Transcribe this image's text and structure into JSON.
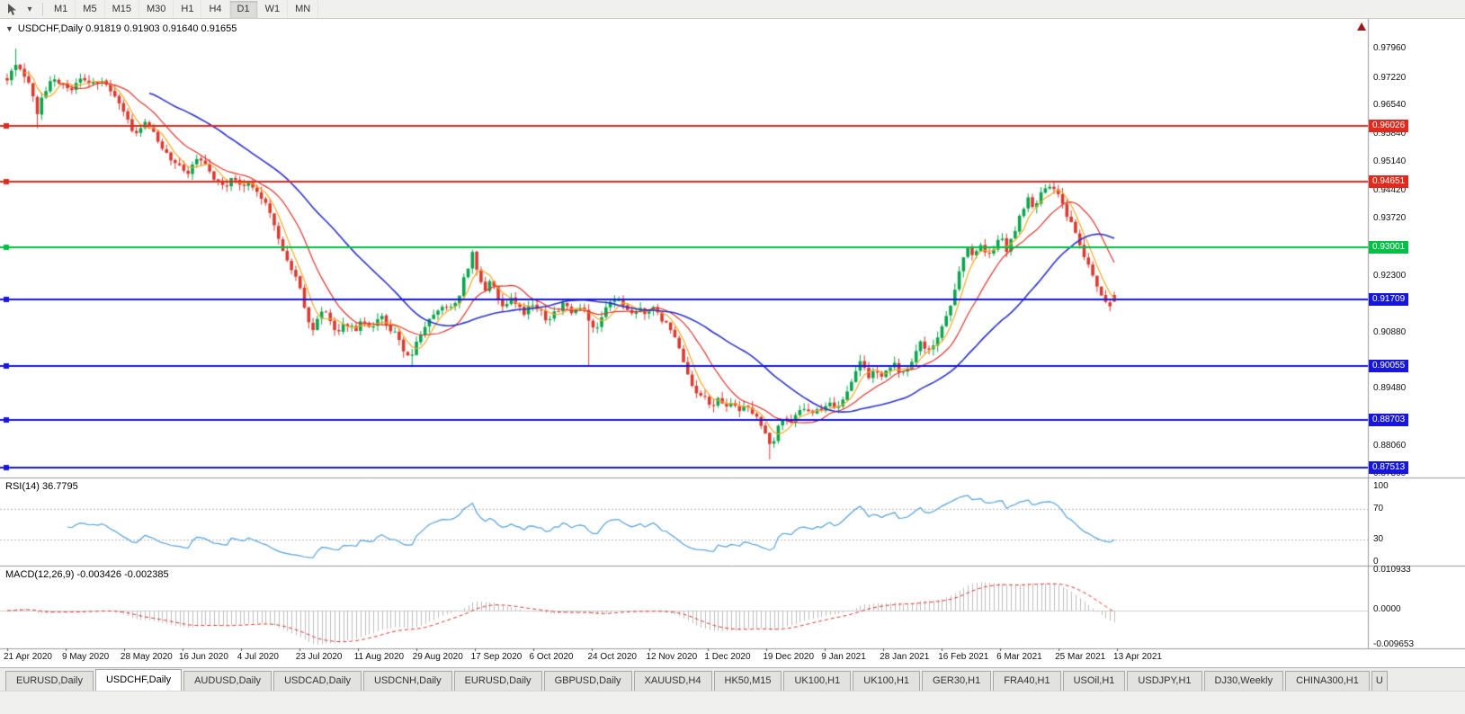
{
  "toolbar": {
    "timeframes": [
      {
        "label": "M1",
        "active": false
      },
      {
        "label": "M5",
        "active": false
      },
      {
        "label": "M15",
        "active": false
      },
      {
        "label": "M30",
        "active": false
      },
      {
        "label": "H1",
        "active": false
      },
      {
        "label": "H4",
        "active": false
      },
      {
        "label": "D1",
        "active": true
      },
      {
        "label": "W1",
        "active": false
      },
      {
        "label": "MN",
        "active": false
      }
    ]
  },
  "chart": {
    "title_text": "USDCHF,Daily 0.91819 0.91903 0.91640 0.91655",
    "collapse_glyph": "▼"
  },
  "indicators": {
    "rsi": {
      "label": "RSI(14) 36.7795",
      "axis_labels": [
        "100",
        "70",
        "30",
        "0"
      ]
    },
    "macd": {
      "label": "MACD(12,26,9) -0.003426 -0.002385",
      "axis_labels": [
        "0.010933",
        "0.0000",
        "-0.009653"
      ]
    }
  },
  "tabs": [
    {
      "label": "EURUSD,Daily",
      "active": false
    },
    {
      "label": "USDCHF,Daily",
      "active": true
    },
    {
      "label": "AUDUSD,Daily",
      "active": false
    },
    {
      "label": "USDCAD,Daily",
      "active": false
    },
    {
      "label": "USDCNH,Daily",
      "active": false
    },
    {
      "label": "EURUSD,Daily",
      "active": false
    },
    {
      "label": "GBPUSD,Daily",
      "active": false
    },
    {
      "label": "XAUUSD,H4",
      "active": false
    },
    {
      "label": "HK50,M15",
      "active": false
    },
    {
      "label": "UK100,H1",
      "active": false
    },
    {
      "label": "UK100,H1",
      "active": false
    },
    {
      "label": "GER30,H1",
      "active": false
    },
    {
      "label": "FRA40,H1",
      "active": false
    },
    {
      "label": "USOil,H1",
      "active": false
    },
    {
      "label": "USDJPY,H1",
      "active": false
    },
    {
      "label": "DJ30,Weekly",
      "active": false
    },
    {
      "label": "CHINA300,H1",
      "active": false
    },
    {
      "label": "U",
      "active": false,
      "clipped": true
    }
  ],
  "chart_data": {
    "type": "candlestick",
    "symbol": "USDCHF",
    "period": "Daily",
    "ohlc_display": {
      "open": 0.91819,
      "high": 0.91903,
      "low": 0.9164,
      "close": 0.91655
    },
    "colors": {
      "up": "#0aa64c",
      "down": "#dc3a30",
      "background": "#ffffff",
      "separator": "#9a9a9a"
    },
    "y_axis_labels": [
      "0.97960",
      "0.97220",
      "0.96540",
      "0.95840",
      "0.95140",
      "0.94420",
      "0.93720",
      "0.92300",
      "0.90880",
      "0.89480",
      "0.88060",
      "0.87360"
    ],
    "x_labels": [
      "21 Apr 2020",
      "9 May 2020",
      "28 May 2020",
      "16 Jun 2020",
      "4 Jul 2020",
      "23 Jul 2020",
      "11 Aug 2020",
      "29 Aug 2020",
      "17 Sep 2020",
      "6 Oct 2020",
      "24 Oct 2020",
      "12 Nov 2020",
      "1 Dec 2020",
      "19 Dec 2020",
      "9 Jan 2021",
      "28 Jan 2021",
      "16 Feb 2021",
      "6 Mar 2021",
      "25 Mar 2021",
      "13 Apr 2021"
    ],
    "price_range": {
      "top": 0.987,
      "bottom": 0.87271
    },
    "hlines": [
      {
        "price": 0.96026,
        "label": "0.96026",
        "color": "#e02a1e",
        "role": "resistance"
      },
      {
        "price": 0.94651,
        "label": "0.94651",
        "color": "#e02a1e",
        "role": "resistance"
      },
      {
        "price": 0.93001,
        "label": "0.93001",
        "color": "#00bf45",
        "role": "pivot"
      },
      {
        "price": 0.91709,
        "label": "0.91709",
        "color": "#1616dc",
        "role": "support"
      },
      {
        "price": 0.90055,
        "label": "0.90055",
        "color": "#1616dc",
        "role": "support"
      },
      {
        "price": 0.88703,
        "label": "0.88703",
        "color": "#1616dc",
        "role": "support"
      },
      {
        "price": 0.87513,
        "label": "0.87513",
        "color": "#1616dc",
        "role": "support"
      }
    ],
    "moving_averages": [
      {
        "period": 5,
        "color": "#f7a822"
      },
      {
        "period": 13,
        "color": "#e0342c"
      },
      {
        "period": 34,
        "color": "#2b33cc"
      }
    ],
    "rsi": {
      "period": 14,
      "current": 36.7795,
      "levels": [
        70,
        30
      ],
      "color": "#53a2dd"
    },
    "macd": {
      "fast": 12,
      "slow": 26,
      "signal": 9,
      "current_main": -0.003426,
      "current_signal": -0.002385,
      "histogram_color": "#bdbdbd",
      "signal_color": "#e0342c"
    },
    "candle_count": 258,
    "wick_events": [
      {
        "t": 0.008,
        "high": 0.9796
      },
      {
        "t": 0.027,
        "low": 0.9598
      },
      {
        "t": 0.364,
        "low": 0.9002
      },
      {
        "t": 0.42,
        "high": 0.9293
      },
      {
        "t": 0.527,
        "low": 0.9004
      },
      {
        "t": 0.69,
        "low": 0.8772
      },
      {
        "t": 0.944,
        "high": 0.9466
      }
    ],
    "close_path": [
      [
        0.0,
        0.972
      ],
      [
        0.008,
        0.9758
      ],
      [
        0.014,
        0.9742
      ],
      [
        0.02,
        0.97
      ],
      [
        0.027,
        0.9638
      ],
      [
        0.034,
        0.9692
      ],
      [
        0.042,
        0.9726
      ],
      [
        0.05,
        0.9708
      ],
      [
        0.058,
        0.9686
      ],
      [
        0.066,
        0.9718
      ],
      [
        0.075,
        0.9702
      ],
      [
        0.085,
        0.9714
      ],
      [
        0.095,
        0.9682
      ],
      [
        0.104,
        0.9648
      ],
      [
        0.111,
        0.9602
      ],
      [
        0.117,
        0.9578
      ],
      [
        0.124,
        0.9618
      ],
      [
        0.132,
        0.9588
      ],
      [
        0.14,
        0.9548
      ],
      [
        0.148,
        0.9522
      ],
      [
        0.156,
        0.9508
      ],
      [
        0.164,
        0.9478
      ],
      [
        0.171,
        0.9528
      ],
      [
        0.179,
        0.9512
      ],
      [
        0.187,
        0.9472
      ],
      [
        0.195,
        0.9448
      ],
      [
        0.202,
        0.947
      ],
      [
        0.21,
        0.9452
      ],
      [
        0.217,
        0.9466
      ],
      [
        0.225,
        0.9442
      ],
      [
        0.233,
        0.9412
      ],
      [
        0.241,
        0.9355
      ],
      [
        0.249,
        0.9292
      ],
      [
        0.256,
        0.9252
      ],
      [
        0.263,
        0.9212
      ],
      [
        0.269,
        0.9152
      ],
      [
        0.275,
        0.9088
      ],
      [
        0.281,
        0.9122
      ],
      [
        0.287,
        0.915
      ],
      [
        0.293,
        0.9112
      ],
      [
        0.299,
        0.9086
      ],
      [
        0.306,
        0.9112
      ],
      [
        0.314,
        0.9092
      ],
      [
        0.321,
        0.912
      ],
      [
        0.329,
        0.9096
      ],
      [
        0.337,
        0.913
      ],
      [
        0.344,
        0.9106
      ],
      [
        0.351,
        0.9082
      ],
      [
        0.358,
        0.9046
      ],
      [
        0.364,
        0.9012
      ],
      [
        0.371,
        0.9076
      ],
      [
        0.379,
        0.9112
      ],
      [
        0.387,
        0.9132
      ],
      [
        0.394,
        0.9158
      ],
      [
        0.401,
        0.9146
      ],
      [
        0.408,
        0.9182
      ],
      [
        0.415,
        0.9242
      ],
      [
        0.42,
        0.9288
      ],
      [
        0.425,
        0.9232
      ],
      [
        0.431,
        0.9192
      ],
      [
        0.437,
        0.9222
      ],
      [
        0.443,
        0.9178
      ],
      [
        0.449,
        0.9142
      ],
      [
        0.455,
        0.9172
      ],
      [
        0.461,
        0.9152
      ],
      [
        0.467,
        0.9132
      ],
      [
        0.474,
        0.9162
      ],
      [
        0.481,
        0.9142
      ],
      [
        0.489,
        0.9112
      ],
      [
        0.496,
        0.9142
      ],
      [
        0.504,
        0.9162
      ],
      [
        0.511,
        0.9138
      ],
      [
        0.519,
        0.9152
      ],
      [
        0.526,
        0.9122
      ],
      [
        0.532,
        0.9092
      ],
      [
        0.537,
        0.9132
      ],
      [
        0.544,
        0.9162
      ],
      [
        0.551,
        0.9182
      ],
      [
        0.557,
        0.9152
      ],
      [
        0.564,
        0.9136
      ],
      [
        0.571,
        0.9152
      ],
      [
        0.577,
        0.9132
      ],
      [
        0.584,
        0.9146
      ],
      [
        0.591,
        0.9122
      ],
      [
        0.599,
        0.9102
      ],
      [
        0.606,
        0.9062
      ],
      [
        0.612,
        0.9012
      ],
      [
        0.618,
        0.8962
      ],
      [
        0.624,
        0.8932
      ],
      [
        0.631,
        0.8922
      ],
      [
        0.637,
        0.8902
      ],
      [
        0.643,
        0.8922
      ],
      [
        0.649,
        0.8896
      ],
      [
        0.655,
        0.8912
      ],
      [
        0.661,
        0.8892
      ],
      [
        0.667,
        0.8906
      ],
      [
        0.673,
        0.8882
      ],
      [
        0.679,
        0.8872
      ],
      [
        0.685,
        0.8842
      ],
      [
        0.69,
        0.8802
      ],
      [
        0.695,
        0.8842
      ],
      [
        0.701,
        0.8882
      ],
      [
        0.707,
        0.8856
      ],
      [
        0.713,
        0.8882
      ],
      [
        0.719,
        0.8902
      ],
      [
        0.725,
        0.8882
      ],
      [
        0.731,
        0.8896
      ],
      [
        0.737,
        0.889
      ],
      [
        0.743,
        0.8912
      ],
      [
        0.749,
        0.8892
      ],
      [
        0.755,
        0.8922
      ],
      [
        0.761,
        0.8952
      ],
      [
        0.767,
        0.8992
      ],
      [
        0.772,
        0.9022
      ],
      [
        0.777,
        0.8976
      ],
      [
        0.783,
        0.8992
      ],
      [
        0.789,
        0.8972
      ],
      [
        0.795,
        0.9002
      ],
      [
        0.801,
        0.9012
      ],
      [
        0.807,
        0.8978
      ],
      [
        0.813,
        0.8996
      ],
      [
        0.819,
        0.9032
      ],
      [
        0.825,
        0.9062
      ],
      [
        0.831,
        0.9042
      ],
      [
        0.837,
        0.9062
      ],
      [
        0.843,
        0.9092
      ],
      [
        0.849,
        0.9132
      ],
      [
        0.855,
        0.9182
      ],
      [
        0.861,
        0.9252
      ],
      [
        0.867,
        0.9302
      ],
      [
        0.873,
        0.9272
      ],
      [
        0.879,
        0.9312
      ],
      [
        0.885,
        0.9282
      ],
      [
        0.891,
        0.9302
      ],
      [
        0.897,
        0.9332
      ],
      [
        0.903,
        0.9292
      ],
      [
        0.909,
        0.9332
      ],
      [
        0.915,
        0.9382
      ],
      [
        0.921,
        0.9422
      ],
      [
        0.927,
        0.9402
      ],
      [
        0.933,
        0.9432
      ],
      [
        0.939,
        0.9452
      ],
      [
        0.944,
        0.9438
      ],
      [
        0.949,
        0.9442
      ],
      [
        0.954,
        0.9402
      ],
      [
        0.959,
        0.9372
      ],
      [
        0.964,
        0.9342
      ],
      [
        0.969,
        0.9302
      ],
      [
        0.974,
        0.9272
      ],
      [
        0.979,
        0.9242
      ],
      [
        0.984,
        0.9212
      ],
      [
        0.989,
        0.9178
      ],
      [
        0.994,
        0.9158
      ],
      [
        1.0,
        0.9166
      ]
    ]
  }
}
